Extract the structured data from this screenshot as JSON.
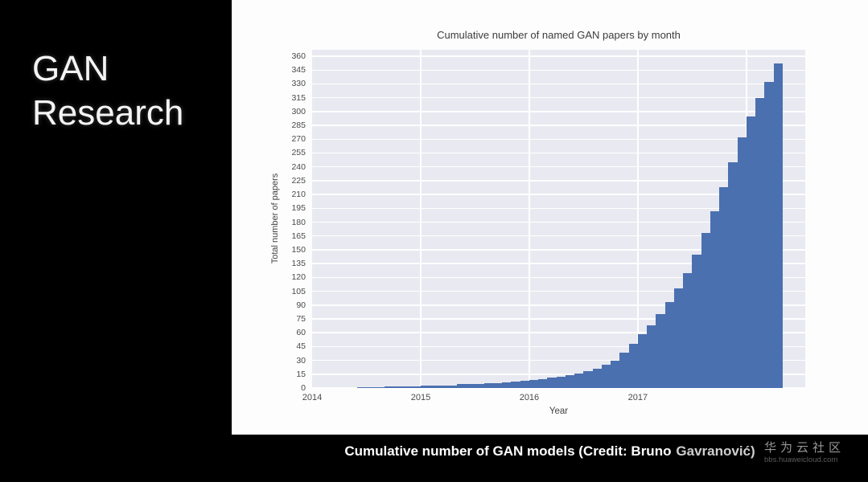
{
  "slide": {
    "title_line1": "GAN",
    "title_line2": "Research",
    "caption_main": "Cumulative number of GAN models (Credit: Bruno",
    "caption_credit": "Gavranović)"
  },
  "watermark": {
    "brand": "华为云社区",
    "url": "bbs.huaweicloud.com"
  },
  "chart_data": {
    "type": "bar",
    "title": "Cumulative number of named GAN papers by month",
    "xlabel": "Year",
    "ylabel": "Total number of papers",
    "ylim": [
      0,
      360
    ],
    "ytick_step": 15,
    "y_top_value": 367,
    "xtick_labels": [
      "2014",
      "2015",
      "2016",
      "2017"
    ],
    "xtick_year_start": 2014,
    "x_domain_months": 54.5,
    "vgrid_years": [
      2015,
      2016,
      2017,
      2018
    ],
    "grid": true,
    "legend": "none",
    "colors": {
      "bar": "#4a70b0",
      "plot_bg": "#e9e9f1",
      "grid": "#ffffff"
    },
    "months": [
      "2014-06",
      "2014-07",
      "2014-08",
      "2014-09",
      "2014-10",
      "2014-11",
      "2014-12",
      "2015-01",
      "2015-02",
      "2015-03",
      "2015-04",
      "2015-05",
      "2015-06",
      "2015-07",
      "2015-08",
      "2015-09",
      "2015-10",
      "2015-11",
      "2015-12",
      "2016-01",
      "2016-02",
      "2016-03",
      "2016-04",
      "2016-05",
      "2016-06",
      "2016-07",
      "2016-08",
      "2016-09",
      "2016-10",
      "2016-11",
      "2016-12",
      "2017-01",
      "2017-02",
      "2017-03",
      "2017-04",
      "2017-05",
      "2017-06",
      "2017-07",
      "2017-08",
      "2017-09",
      "2017-10",
      "2017-11",
      "2017-12",
      "2018-01",
      "2018-02",
      "2018-03",
      "2018-04"
    ],
    "values": [
      1,
      1,
      1,
      2,
      2,
      2,
      2,
      3,
      3,
      3,
      3,
      4,
      4,
      4,
      5,
      5,
      6,
      7,
      8,
      9,
      10,
      11,
      12,
      14,
      16,
      18,
      21,
      25,
      30,
      38,
      48,
      58,
      68,
      80,
      93,
      108,
      125,
      145,
      168,
      192,
      218,
      245,
      272,
      295,
      315,
      332,
      352
    ]
  }
}
